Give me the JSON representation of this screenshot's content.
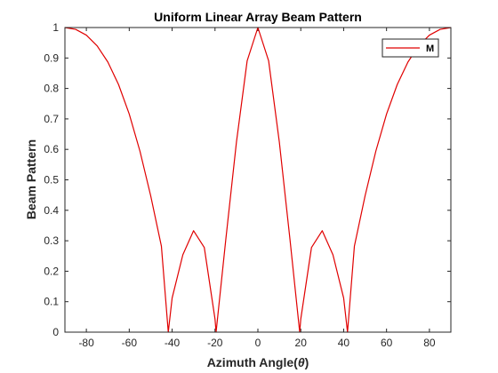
{
  "chart_data": {
    "type": "line",
    "title": "Uniform Linear Array Beam Pattern",
    "xlabel_prefix": "Azimuth Angle(",
    "xlabel_symbol": "θ",
    "xlabel_suffix": ")",
    "ylabel": "Beam Pattern",
    "xlim": [
      -90,
      90
    ],
    "ylim": [
      0,
      1
    ],
    "xticks": [
      -80,
      -60,
      -40,
      -20,
      0,
      20,
      40,
      60,
      80
    ],
    "yticks": [
      0,
      0.1,
      0.2,
      0.3,
      0.4,
      0.5,
      0.6,
      0.7,
      0.8,
      0.9,
      1
    ],
    "ytick_labels": [
      "0",
      "0.1",
      "0.2",
      "0.3",
      "0.4",
      "0.5",
      "0.6",
      "0.7",
      "0.8",
      "0.9",
      "1"
    ],
    "grid": false,
    "legend_position": "top-right",
    "series": [
      {
        "name": "M",
        "color": "#e00000",
        "x": [
          -90,
          -85,
          -80,
          -75,
          -70,
          -65,
          -60,
          -55,
          -50,
          -45,
          -41.8,
          -40,
          -35,
          -30,
          -25,
          -20,
          -19.5,
          -15,
          -10,
          -5,
          0,
          5,
          10,
          15,
          19.5,
          20,
          25,
          30,
          35,
          40,
          41.8,
          45,
          50,
          55,
          60,
          65,
          70,
          75,
          80,
          85,
          90
        ],
        "y": [
          1.0,
          0.994,
          0.975,
          0.94,
          0.887,
          0.813,
          0.716,
          0.594,
          0.448,
          0.282,
          0.0,
          0.112,
          0.254,
          0.333,
          0.278,
          0.043,
          0.0,
          0.302,
          0.624,
          0.891,
          1.0,
          0.891,
          0.624,
          0.302,
          0.0,
          0.043,
          0.278,
          0.333,
          0.254,
          0.112,
          0.0,
          0.282,
          0.448,
          0.594,
          0.716,
          0.813,
          0.887,
          0.94,
          0.975,
          0.994,
          1.0
        ]
      }
    ]
  }
}
